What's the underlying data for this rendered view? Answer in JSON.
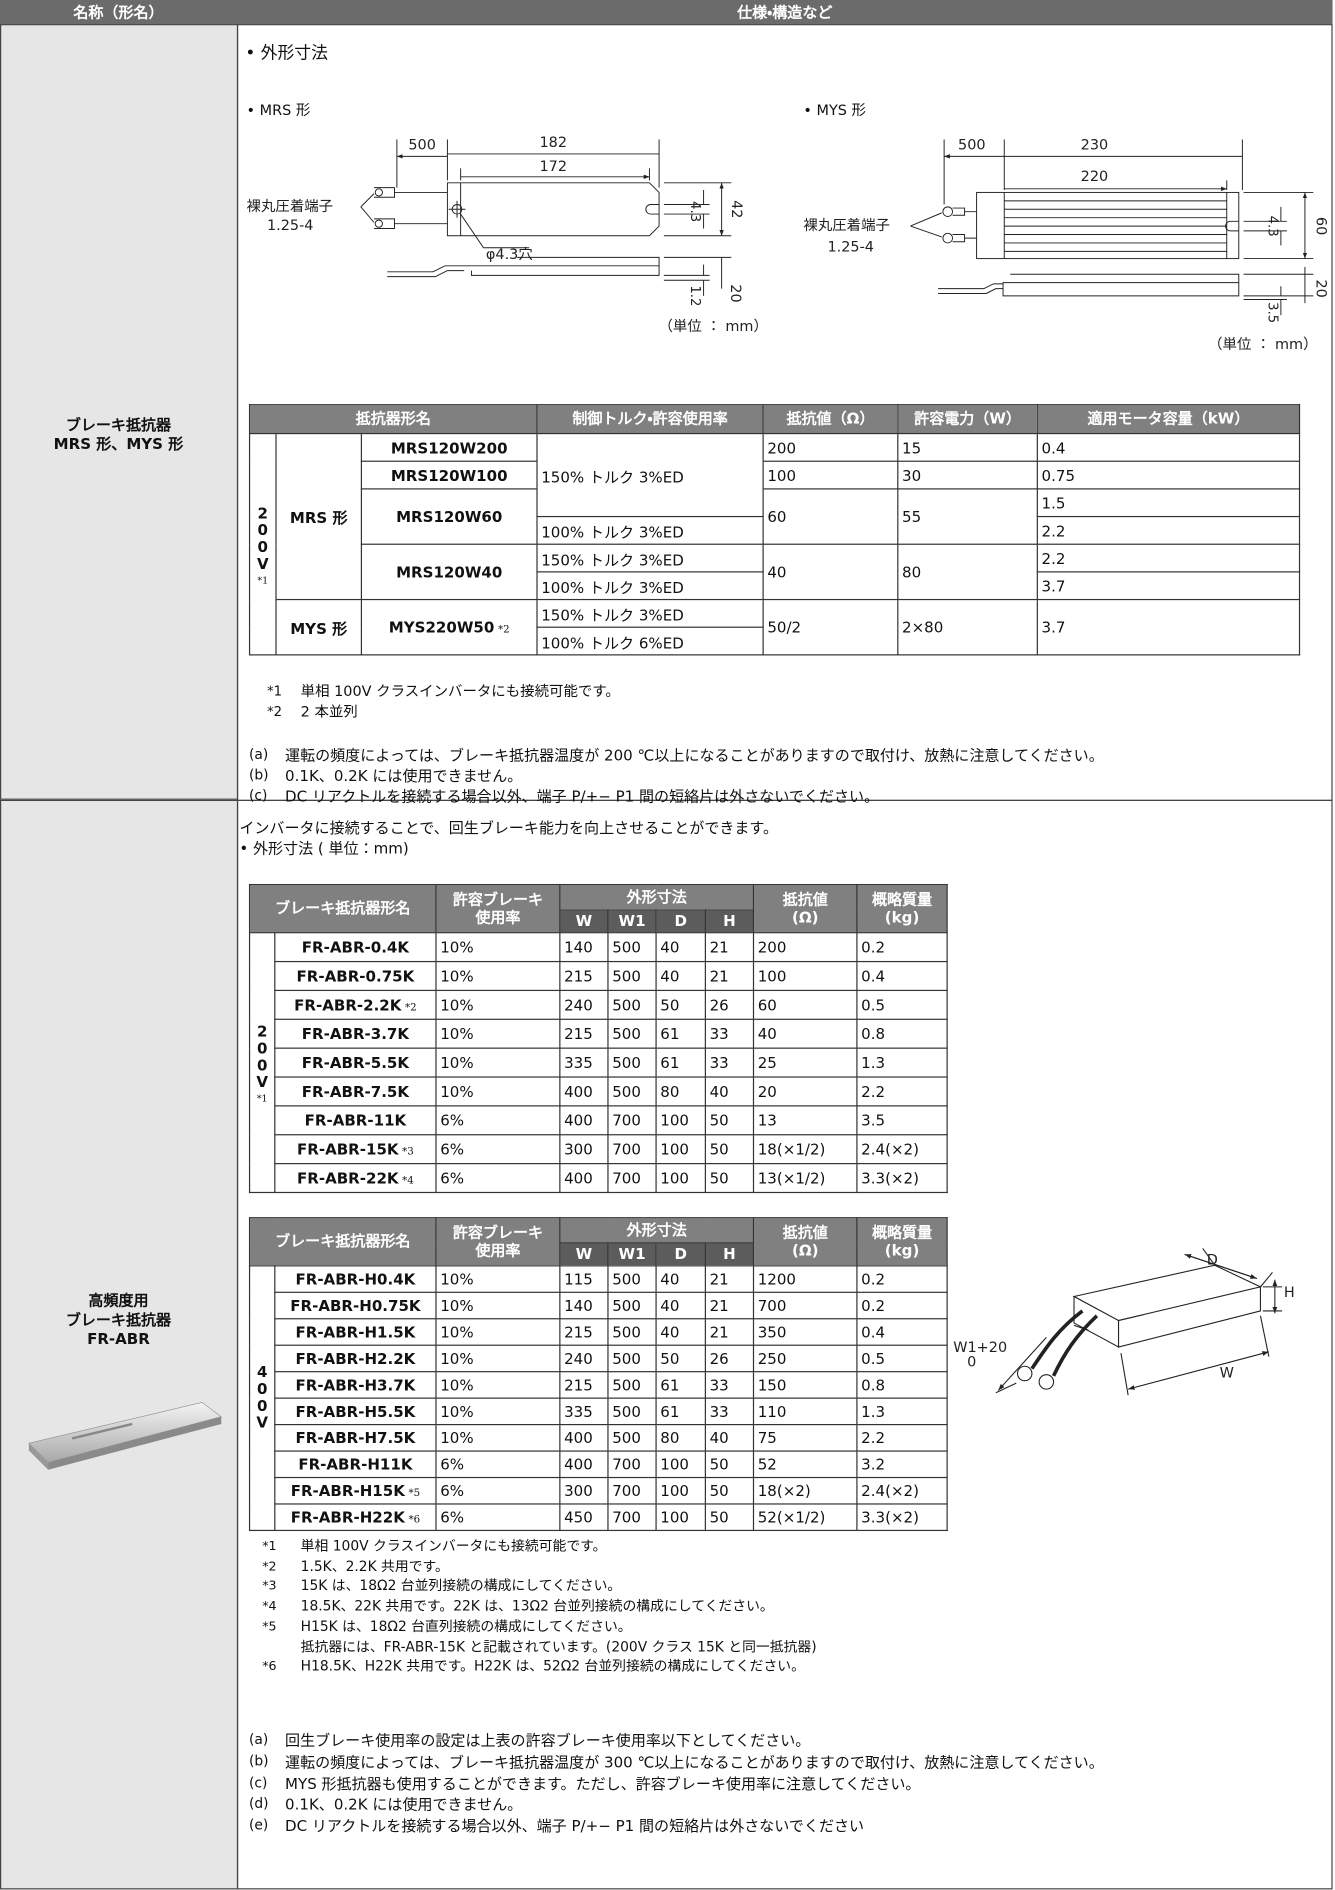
{
  "header": {
    "name": "名称（形名）",
    "spec": "仕様・構造など"
  },
  "mrs_mys": {
    "name": [
      "ブレーキ抵抗器",
      "MRS 形、MYS 形"
    ],
    "heading": "• 外形寸法",
    "mrs_drawing": {
      "label": "• MRS 形",
      "terminal": [
        "裸丸圧着端子",
        "1.25-4"
      ],
      "lead": 500,
      "length": 182,
      "pitch": 172,
      "width": 42,
      "slot": 4.3,
      "hole": "φ4.3穴",
      "thickness": 1.2,
      "height": 20,
      "unit": "（単位 ： mm）"
    },
    "mys_drawing": {
      "label": "• MYS 形",
      "terminal": [
        "裸丸圧着端子",
        "1.25-4"
      ],
      "lead": 500,
      "length": 230,
      "pitch": 220,
      "width": 60,
      "slot": 4.3,
      "thickness": 3.5,
      "height": 20,
      "unit": "（単位 ： mm）"
    },
    "table": {
      "headers": [
        "抵抗器形名",
        "制御トルク・許容使用率",
        "抵抗値（Ω）",
        "許容電力（W）",
        "適用モータ容量（kW）"
      ],
      "voltage": "200V",
      "voltage_note": "*1",
      "series": [
        "MRS 形",
        "MYS 形"
      ],
      "models": [
        "MRS120W200",
        "MRS120W100",
        "MRS120W60",
        "MRS120W40",
        "MYS220W50"
      ],
      "model_note": "*2",
      "torque": [
        "150% トルク 3%ED",
        "100% トルク 3%ED",
        "150% トルク 3%ED",
        "100% トルク 3%ED",
        "150% トルク 3%ED",
        "100% トルク 6%ED"
      ],
      "resistance": [
        200,
        100,
        60,
        40,
        "50/2"
      ],
      "power": [
        15,
        30,
        55,
        80,
        "2×80"
      ],
      "motor": [
        0.4,
        0.75,
        1.5,
        2.2,
        2.2,
        3.7,
        3.7
      ]
    },
    "footnotes": [
      {
        "mark": "*1",
        "text": "単相 100V クラスインバータにも接続可能です。"
      },
      {
        "mark": "*2",
        "text": "2 本並列"
      }
    ],
    "cautions": [
      {
        "mark": "(a)",
        "text": "運転の頻度によっては、ブレーキ抵抗器温度が 200 ℃以上になることがありますので取付け、放熱に注意してください。"
      },
      {
        "mark": "(b)",
        "text": "0.1K、0.2K には使用できません。"
      },
      {
        "mark": "(c)",
        "text": "DC リアクトルを接続する場合以外、端子 P/+− P1 間の短絡片は外さないでください。"
      }
    ]
  },
  "fr_abr": {
    "name": [
      "高頻度用",
      "ブレーキ抵抗器",
      "FR-ABR"
    ],
    "intro": "インバータに接続することで、回生ブレーキ能力を向上させることができます。",
    "heading": "• 外形寸法 ( 単位：mm)",
    "tables": [
      {
        "headers": {
          "model": "ブレーキ抵抗器形名",
          "rate": [
            "許容ブレーキ",
            "使用率"
          ],
          "dims": "外形寸法",
          "dim_cols": [
            "W",
            "W1",
            "D",
            "H"
          ],
          "resistance": [
            "抵抗値",
            "(Ω)"
          ],
          "mass": [
            "概略質量",
            "(kg)"
          ]
        },
        "voltage": "200V",
        "voltage_note": "*1",
        "rows": [
          {
            "model": "FR-ABR-0.4K",
            "rate": "10%",
            "W": 140,
            "W1": 500,
            "D": 40,
            "H": 21,
            "resistance": 200,
            "mass": 0.2
          },
          {
            "model": "FR-ABR-0.75K",
            "rate": "10%",
            "W": 215,
            "W1": 500,
            "D": 40,
            "H": 21,
            "resistance": 100,
            "mass": 0.4
          },
          {
            "model": "FR-ABR-2.2K",
            "note": "*2",
            "rate": "10%",
            "W": 240,
            "W1": 500,
            "D": 50,
            "H": 26,
            "resistance": 60,
            "mass": 0.5
          },
          {
            "model": "FR-ABR-3.7K",
            "rate": "10%",
            "W": 215,
            "W1": 500,
            "D": 61,
            "H": 33,
            "resistance": 40,
            "mass": 0.8
          },
          {
            "model": "FR-ABR-5.5K",
            "rate": "10%",
            "W": 335,
            "W1": 500,
            "D": 61,
            "H": 33,
            "resistance": 25,
            "mass": 1.3
          },
          {
            "model": "FR-ABR-7.5K",
            "rate": "10%",
            "W": 400,
            "W1": 500,
            "D": 80,
            "H": 40,
            "resistance": 20,
            "mass": 2.2
          },
          {
            "model": "FR-ABR-11K",
            "rate": "6%",
            "W": 400,
            "W1": 700,
            "D": 100,
            "H": 50,
            "resistance": 13,
            "mass": 3.5
          },
          {
            "model": "FR-ABR-15K",
            "note": "*3",
            "rate": "6%",
            "W": 300,
            "W1": 700,
            "D": 100,
            "H": 50,
            "resistance": "18(×1/2)",
            "mass": "2.4(×2)"
          },
          {
            "model": "FR-ABR-22K",
            "note": "*4",
            "rate": "6%",
            "W": 400,
            "W1": 700,
            "D": 100,
            "H": 50,
            "resistance": "13(×1/2)",
            "mass": "3.3(×2)"
          }
        ]
      },
      {
        "headers": {
          "model": "ブレーキ抵抗器形名",
          "rate": [
            "許容ブレーキ",
            "使用率"
          ],
          "dims": "外形寸法",
          "dim_cols": [
            "W",
            "W1",
            "D",
            "H"
          ],
          "resistance": [
            "抵抗値",
            "(Ω)"
          ],
          "mass": [
            "概略質量",
            "(kg)"
          ]
        },
        "voltage": "400V",
        "rows": [
          {
            "model": "FR-ABR-H0.4K",
            "rate": "10%",
            "W": 115,
            "W1": 500,
            "D": 40,
            "H": 21,
            "resistance": 1200,
            "mass": 0.2
          },
          {
            "model": "FR-ABR-H0.75K",
            "rate": "10%",
            "W": 140,
            "W1": 500,
            "D": 40,
            "H": 21,
            "resistance": 700,
            "mass": 0.2
          },
          {
            "model": "FR-ABR-H1.5K",
            "rate": "10%",
            "W": 215,
            "W1": 500,
            "D": 40,
            "H": 21,
            "resistance": 350,
            "mass": 0.4
          },
          {
            "model": "FR-ABR-H2.2K",
            "rate": "10%",
            "W": 240,
            "W1": 500,
            "D": 50,
            "H": 26,
            "resistance": 250,
            "mass": 0.5
          },
          {
            "model": "FR-ABR-H3.7K",
            "rate": "10%",
            "W": 215,
            "W1": 500,
            "D": 61,
            "H": 33,
            "resistance": 150,
            "mass": 0.8
          },
          {
            "model": "FR-ABR-H5.5K",
            "rate": "10%",
            "W": 335,
            "W1": 500,
            "D": 61,
            "H": 33,
            "resistance": 110,
            "mass": 1.3
          },
          {
            "model": "FR-ABR-H7.5K",
            "rate": "10%",
            "W": 400,
            "W1": 500,
            "D": 80,
            "H": 40,
            "resistance": 75,
            "mass": 2.2
          },
          {
            "model": "FR-ABR-H11K",
            "rate": "6%",
            "W": 400,
            "W1": 700,
            "D": 100,
            "H": 50,
            "resistance": 52,
            "mass": 3.2
          },
          {
            "model": "FR-ABR-H15K",
            "note": "*5",
            "rate": "6%",
            "W": 300,
            "W1": 700,
            "D": 100,
            "H": 50,
            "resistance": "18(×2)",
            "mass": "2.4(×2)"
          },
          {
            "model": "FR-ABR-H22K",
            "note": "*6",
            "rate": "6%",
            "W": 450,
            "W1": 700,
            "D": 100,
            "H": 50,
            "resistance": "52(×1/2)",
            "mass": "3.3(×2)"
          }
        ]
      }
    ],
    "sketch": {
      "depth": "D",
      "height": "H",
      "lead": "W1+20",
      "lead_tol": "0",
      "width": "W"
    },
    "footnotes": [
      {
        "mark": "*1",
        "text": "単相 100V クラスインバータにも接続可能です。"
      },
      {
        "mark": "*2",
        "text": "1.5K、2.2K 共用です。"
      },
      {
        "mark": "*3",
        "text": "15K は、18Ω2 台並列接続の構成にしてください。"
      },
      {
        "mark": "*4",
        "text": "18.5K、22K 共用です。22K は、13Ω2 台並列接続の構成にしてください。"
      },
      {
        "mark": "*5",
        "text": [
          "H15K は、18Ω2 台直列接続の構成にしてください。",
          "抵抗器には、FR-ABR-15K と記載されています。(200V クラス 15K と同一抵抗器)"
        ]
      },
      {
        "mark": "*6",
        "text": "H18.5K、H22K 共用です。H22K は、52Ω2 台並列接続の構成にしてください。"
      }
    ],
    "cautions": [
      {
        "mark": "(a)",
        "text": "回生ブレーキ使用率の設定は上表の許容ブレーキ使用率以下としてください。"
      },
      {
        "mark": "(b)",
        "text": "運転の頻度によっては、ブレーキ抵抗器温度が 300 ℃以上になることがありますので取付け、放熱に注意してください。"
      },
      {
        "mark": "(c)",
        "text": "MYS 形抵抗器も使用することができます。ただし、許容ブレーキ使用率に注意してください。"
      },
      {
        "mark": "(d)",
        "text": "0.1K、0.2K には使用できません。"
      },
      {
        "mark": "(e)",
        "text": "DC リアクトルを接続する場合以外、端子 P/+− P1 間の短絡片は外さないでください"
      }
    ]
  }
}
